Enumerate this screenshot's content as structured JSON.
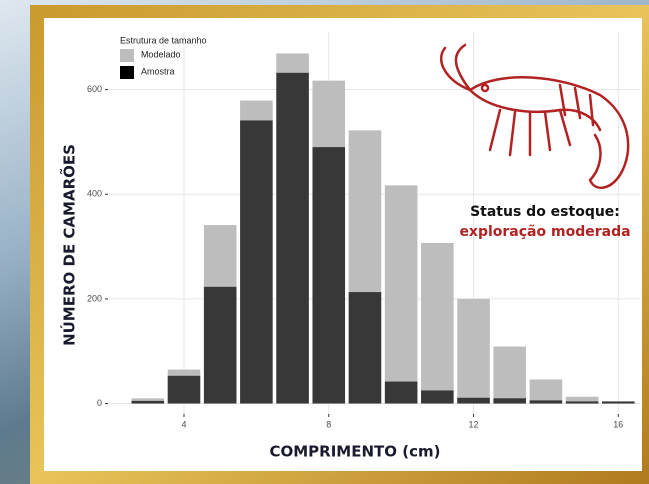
{
  "chart_data": {
    "type": "bar",
    "xlabel": "COMPRIMENTO (cm)",
    "ylabel": "NÚMERO DE CAMARÕES",
    "legend_title": "Estrutura de tamanho",
    "legend": "top-left",
    "grid": true,
    "x": [
      3,
      4,
      5,
      6,
      7,
      8,
      9,
      10,
      11,
      12,
      13,
      14,
      15,
      16
    ],
    "series": [
      {
        "name": "Modelado",
        "color": "#bdbdbd",
        "values": [
          10,
          65,
          341,
          579,
          669,
          617,
          522,
          417,
          307,
          200,
          109,
          46,
          13,
          4
        ]
      },
      {
        "name": "Amostra",
        "color": "#000000",
        "values": [
          5,
          53,
          223,
          541,
          632,
          490,
          213,
          42,
          25,
          11,
          10,
          6,
          4,
          4
        ]
      }
    ],
    "xlim": [
      1.9,
      16.6
    ],
    "xticks": [
      4,
      8,
      12,
      16
    ],
    "ylim": [
      -20,
      710
    ],
    "yticks": [
      0,
      200,
      400,
      600
    ],
    "annotation": {
      "title": "Status do estoque:",
      "text": "exploração moderada"
    }
  }
}
